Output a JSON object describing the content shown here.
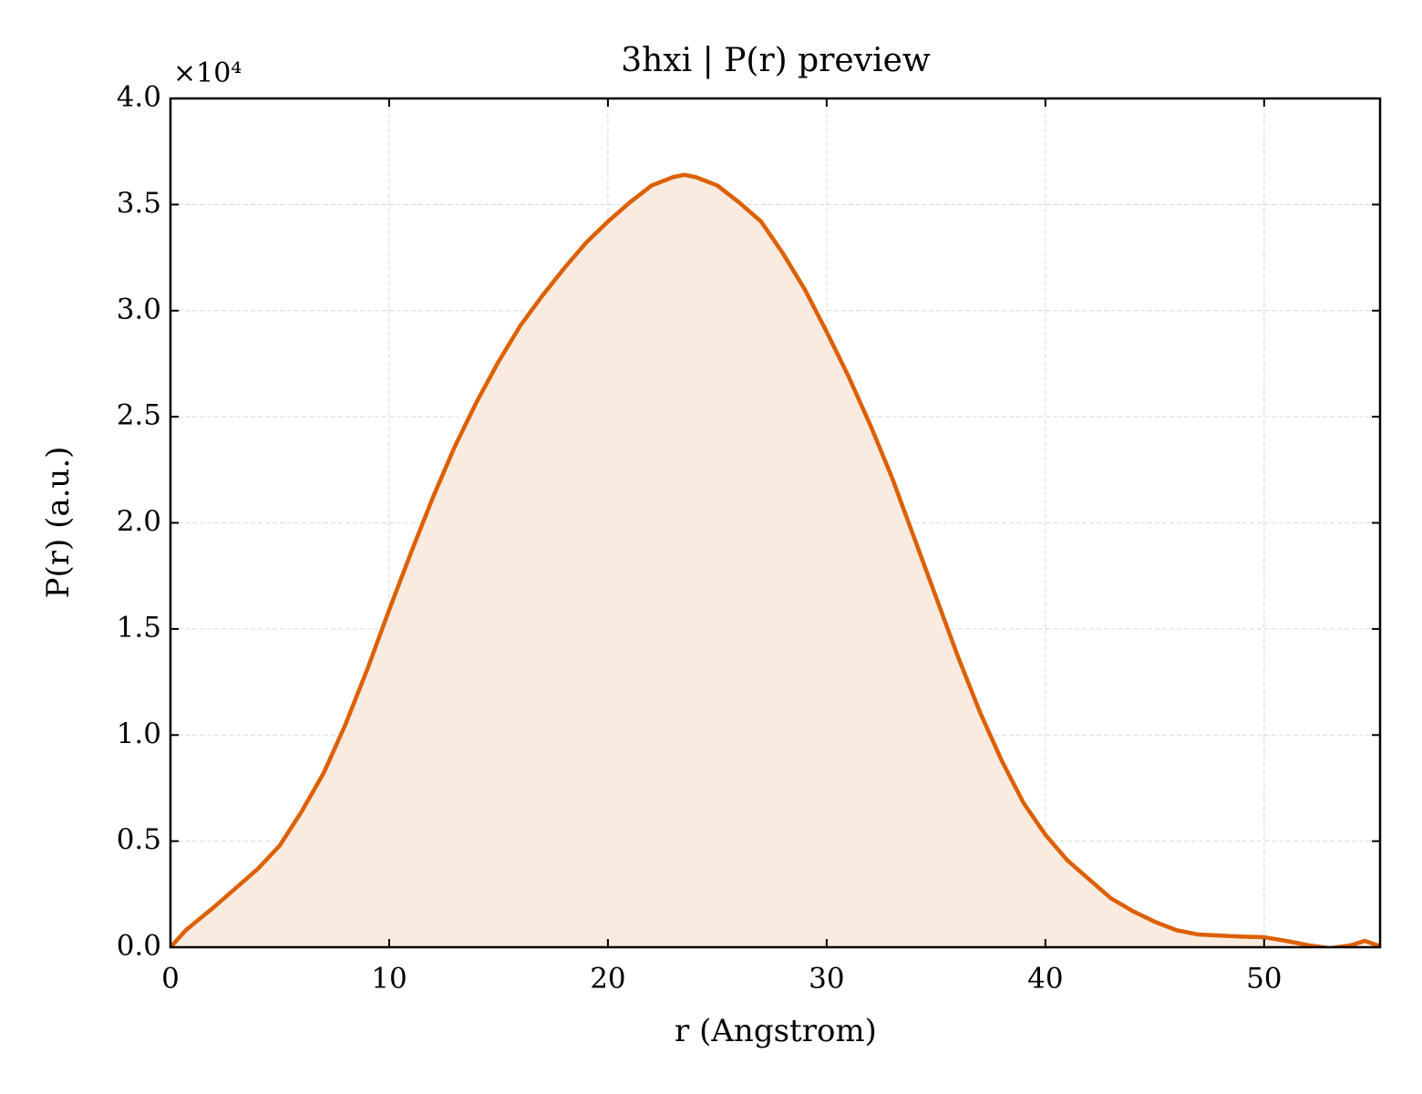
{
  "chart_data": {
    "type": "area",
    "title": "3hxi | P(r) preview",
    "x_label": "r (Angstrom)",
    "y_label": "P(r) (a.u.)",
    "y_offset_label": "×10⁴",
    "x": [
      0,
      0.7,
      2,
      4,
      5,
      6,
      7,
      8,
      9,
      10,
      11,
      12,
      13,
      14,
      15,
      16,
      17,
      18,
      19,
      20,
      21,
      22,
      23,
      23.5,
      24,
      25,
      26,
      27,
      28,
      29,
      30,
      31,
      32,
      33,
      34,
      35,
      36,
      37,
      38,
      39,
      40,
      41,
      42,
      43,
      44,
      45,
      46,
      47,
      48,
      49,
      50,
      51,
      52,
      53,
      54,
      54.6,
      55.3
    ],
    "values": [
      0,
      0.08,
      0.19,
      0.37,
      0.48,
      0.64,
      0.82,
      1.05,
      1.31,
      1.59,
      1.86,
      2.12,
      2.36,
      2.57,
      2.76,
      2.93,
      3.07,
      3.2,
      3.32,
      3.42,
      3.51,
      3.59,
      3.63,
      3.64,
      3.63,
      3.59,
      3.51,
      3.42,
      3.27,
      3.1,
      2.9,
      2.69,
      2.46,
      2.21,
      1.93,
      1.65,
      1.37,
      1.11,
      0.88,
      0.68,
      0.53,
      0.41,
      0.32,
      0.23,
      0.17,
      0.12,
      0.08,
      0.06,
      0.055,
      0.05,
      0.047,
      0.03,
      0.01,
      -0.005,
      0.01,
      0.03,
      0.005
    ],
    "color": "#dd6000",
    "fill_color": "#f9ebe0",
    "xlim": [
      0,
      55.3
    ],
    "ylim": [
      0,
      4
    ],
    "xticks": [
      0,
      10,
      20,
      30,
      40,
      50
    ],
    "yticks": [
      {
        "value": 0,
        "label": "0.0"
      },
      0.5,
      {
        "value": 1,
        "label": "1.0"
      },
      1.5,
      {
        "value": 2,
        "label": "2.0"
      },
      2.5,
      {
        "value": 3,
        "label": "3.0"
      },
      3.5,
      {
        "value": 4,
        "label": "4.0"
      }
    ],
    "grid": true
  }
}
